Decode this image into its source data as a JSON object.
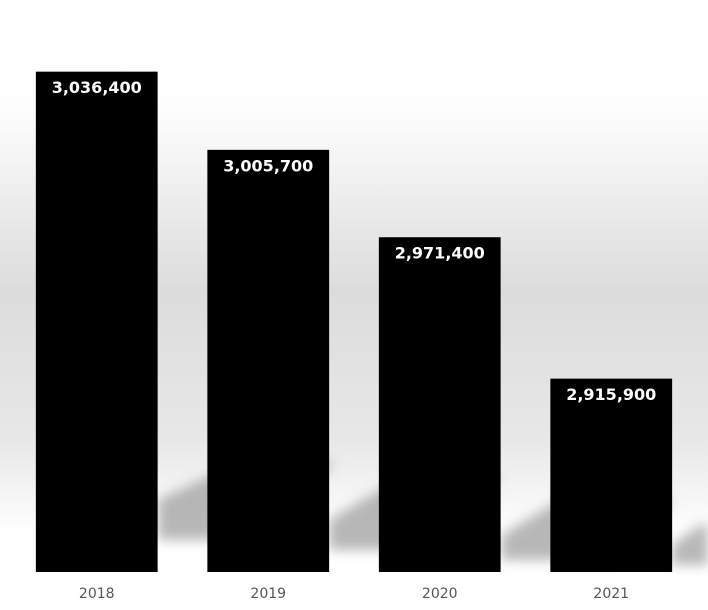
{
  "chart_data": {
    "type": "bar",
    "categories": [
      "2018",
      "2019",
      "2020",
      "2021"
    ],
    "values": [
      3036400,
      3005700,
      2971400,
      2915900
    ],
    "value_labels": [
      "3,036,400",
      "3,005,700",
      "2,971,400",
      "2,915,900"
    ],
    "color": "#000000",
    "ylim": [
      2840000,
      3050000
    ]
  }
}
